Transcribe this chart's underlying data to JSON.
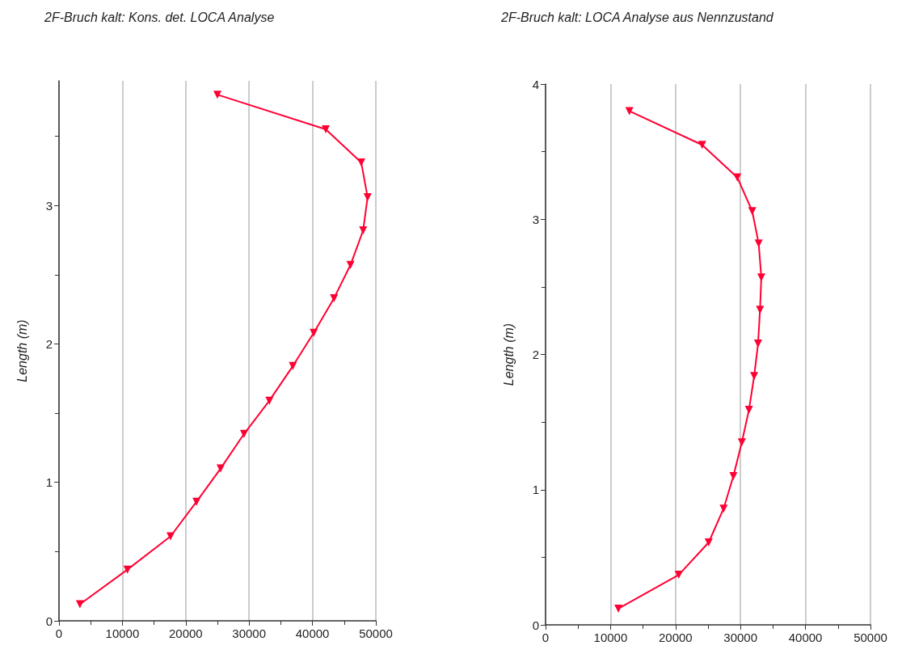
{
  "chart_data": [
    {
      "type": "line",
      "title": "2F-Bruch kalt: Kons. det. LOCA Analyse",
      "ylabel": "Length (m)",
      "orientation": "horizontal",
      "marker": "triangle",
      "line_style": "solid",
      "grid": "x",
      "xlim": [
        0,
        50000
      ],
      "xticks": [
        0,
        {
          "value": 5000,
          "label": null
        },
        10000,
        {
          "value": 15000,
          "label": null
        },
        20000,
        {
          "value": 25000,
          "label": null
        },
        30000,
        {
          "value": 35000,
          "label": null
        },
        40000,
        {
          "value": 45000,
          "label": null
        },
        50000
      ],
      "ylim": [
        0,
        3.9
      ],
      "yticks": [
        0,
        {
          "value": 0.5,
          "label": null
        },
        1,
        {
          "value": 1.5,
          "label": null
        },
        2,
        {
          "value": 2.5,
          "label": null
        },
        3,
        {
          "value": 3.5,
          "label": null
        }
      ],
      "series": [
        {
          "color": "#ff0033",
          "x": [
            0.12,
            0.37,
            0.61,
            0.86,
            1.1,
            1.35,
            1.59,
            1.84,
            2.08,
            2.33,
            2.57,
            2.82,
            3.06,
            3.31,
            3.55,
            3.8
          ],
          "values": [
            3300,
            10800,
            17600,
            21700,
            25500,
            29200,
            33200,
            36900,
            40200,
            43400,
            46000,
            48000,
            48700,
            47700,
            42100,
            25000
          ]
        }
      ]
    },
    {
      "type": "line",
      "title": "2F-Bruch kalt: LOCA Analyse aus Nennzustand",
      "ylabel": "Length (m)",
      "orientation": "horizontal",
      "marker": "triangle",
      "line_style": "solid",
      "grid": "x",
      "xlim": [
        0,
        50000
      ],
      "xticks": [
        0,
        {
          "value": 5000,
          "label": null
        },
        10000,
        {
          "value": 15000,
          "label": null
        },
        20000,
        {
          "value": 25000,
          "label": null
        },
        30000,
        {
          "value": 35000,
          "label": null
        },
        40000,
        {
          "value": 45000,
          "label": null
        },
        50000
      ],
      "ylim": [
        0,
        4
      ],
      "yticks": [
        0,
        {
          "value": 0.5,
          "label": null
        },
        1,
        {
          "value": 1.5,
          "label": null
        },
        2,
        {
          "value": 2.5,
          "label": null
        },
        3,
        {
          "value": 3.5,
          "label": null
        },
        4
      ],
      "series": [
        {
          "color": "#ff0033",
          "x": [
            0.12,
            0.37,
            0.61,
            0.86,
            1.1,
            1.35,
            1.59,
            1.84,
            2.08,
            2.33,
            2.57,
            2.82,
            3.06,
            3.31,
            3.55,
            3.8
          ],
          "values": [
            11200,
            20500,
            25100,
            27400,
            28900,
            30200,
            31300,
            32100,
            32700,
            33000,
            33200,
            32800,
            31800,
            29500,
            24100,
            12900
          ]
        }
      ]
    }
  ]
}
